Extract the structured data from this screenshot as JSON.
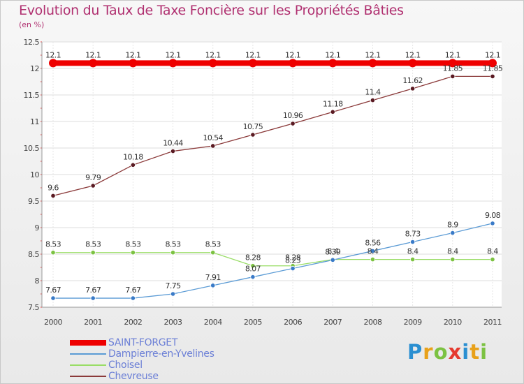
{
  "header": {
    "title": "Evolution du Taux de Taxe Foncière sur les Propriétés Bâties",
    "unit": "(en %)"
  },
  "brand": {
    "letters": [
      "P",
      "r",
      "o",
      "x",
      "i",
      "t",
      "i"
    ],
    "colors": [
      "#2a8fd1",
      "#e8a11a",
      "#7cc242",
      "#e53a2f",
      "#2a8fd1",
      "#e8a11a",
      "#7cc242"
    ]
  },
  "chart_data": {
    "type": "line",
    "title": "Evolution du Taux de Taxe Foncière sur les Propriétés Bâties",
    "ylabel": "(en %)",
    "xlabel": "",
    "categories": [
      "2000",
      "2001",
      "2002",
      "2003",
      "2004",
      "2005",
      "2006",
      "2007",
      "2008",
      "2009",
      "2010",
      "2011"
    ],
    "ylim": [
      7.5,
      12.5
    ],
    "yticks": [
      "7.5",
      "8",
      "8.5",
      "9",
      "9.5",
      "10",
      "10.5",
      "11",
      "11.5",
      "12",
      "12.5"
    ],
    "legend_position": "bottom-left",
    "series": [
      {
        "name": "SAINT-FORGET",
        "color": "#ee0000",
        "emphasis": "thick",
        "values": [
          12.1,
          12.1,
          12.1,
          12.1,
          12.1,
          12.1,
          12.1,
          12.1,
          12.1,
          12.1,
          12.1,
          12.1
        ],
        "labels": [
          "12.1",
          "12.1",
          "12.1",
          "12.1",
          "12.1",
          "12.1",
          "12.1",
          "12.1",
          "12.1",
          "12.1",
          "12.1",
          "12.1"
        ]
      },
      {
        "name": "Dampierre-en-Yvelines",
        "color": "#5b9bd5",
        "point_color": "#3a7bc8",
        "emphasis": "normal",
        "values": [
          7.67,
          7.67,
          7.67,
          7.75,
          7.91,
          8.07,
          8.23,
          8.39,
          8.56,
          8.73,
          8.9,
          9.08
        ],
        "labels": [
          "7.67",
          "7.67",
          "7.67",
          "7.75",
          "7.91",
          "8.07",
          "8.23",
          "8.39",
          "8.56",
          "8.73",
          "8.9",
          "9.08"
        ]
      },
      {
        "name": "Choisel",
        "color": "#99dd66",
        "point_color": "#7cc242",
        "emphasis": "normal",
        "values": [
          8.53,
          8.53,
          8.53,
          8.53,
          8.53,
          8.28,
          8.28,
          8.4,
          8.4,
          8.4,
          8.4,
          8.4
        ],
        "labels": [
          "8.53",
          "8.53",
          "8.53",
          "8.53",
          "8.53",
          "8.28",
          "8.28",
          "8.4",
          "8.4",
          "8.4",
          "8.4",
          "8.4"
        ]
      },
      {
        "name": "Chevreuse",
        "color": "#8b3a3a",
        "point_color": "#5a1a22",
        "emphasis": "normal",
        "values": [
          9.6,
          9.79,
          10.18,
          10.44,
          10.54,
          10.75,
          10.96,
          11.18,
          11.4,
          11.62,
          11.85,
          11.85
        ],
        "labels": [
          "9.6",
          "9.79",
          "10.18",
          "10.44",
          "10.54",
          "10.75",
          "10.96",
          "11.18",
          "11.4",
          "11.62",
          "11.85",
          "11.85"
        ]
      }
    ]
  }
}
